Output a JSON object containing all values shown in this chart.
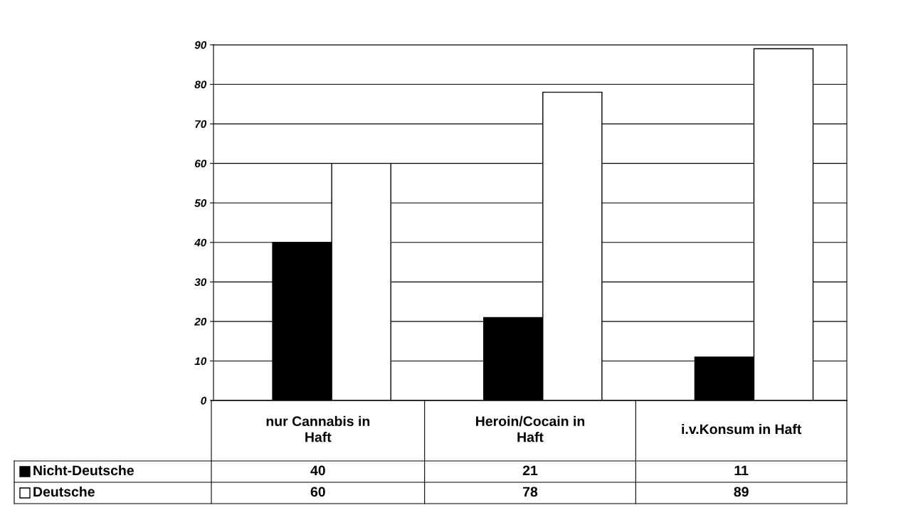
{
  "chart_data": {
    "type": "bar",
    "categories": [
      "nur Cannabis in\nHaft",
      "Heroin/Cocain in\nHaft",
      "i.v.Konsum in Haft"
    ],
    "series": [
      {
        "name": "Nicht-Deutsche",
        "color": "#000000",
        "values": [
          40,
          21,
          11
        ]
      },
      {
        "name": "Deutsche",
        "color": "#ffffff",
        "values": [
          60,
          78,
          89
        ]
      }
    ],
    "ylim": [
      0,
      90
    ],
    "yticks": [
      0,
      10,
      20,
      30,
      40,
      50,
      60,
      70,
      80,
      90
    ],
    "grid": "y",
    "legend": "bottom",
    "data_labels": true
  }
}
